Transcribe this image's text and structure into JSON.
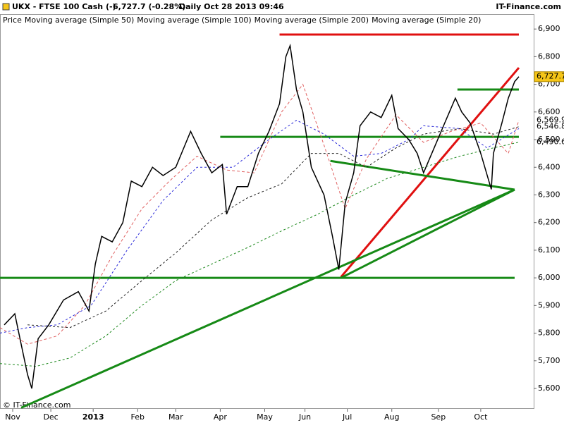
{
  "chart_data": {
    "type": "line",
    "title": "UKX - FTSE 100 Cash (-)",
    "quote": "6,727.7 (-0.28%)",
    "period": "Daily  Oct 28 2013 09:46",
    "source": "IT-Finance.com",
    "footer": "© IT-Finance.com",
    "xlim": [
      0,
      252
    ],
    "ylim": [
      5526,
      6954
    ],
    "xticks": [
      {
        "value": 6,
        "label": "Nov"
      },
      {
        "value": 24,
        "label": "Dec"
      },
      {
        "value": 44,
        "label": "2013"
      },
      {
        "value": 65,
        "label": "Feb"
      },
      {
        "value": 83,
        "label": "Mar"
      },
      {
        "value": 104,
        "label": "Apr"
      },
      {
        "value": 125,
        "label": "May"
      },
      {
        "value": 144,
        "label": "Jun"
      },
      {
        "value": 164,
        "label": "Jul"
      },
      {
        "value": 185,
        "label": "Aug"
      },
      {
        "value": 207,
        "label": "Sep"
      },
      {
        "value": 227,
        "label": "Oct"
      }
    ],
    "yticks": [
      {
        "value": 5600,
        "label": "5,600"
      },
      {
        "value": 5700,
        "label": "5,700"
      },
      {
        "value": 5800,
        "label": "5,800"
      },
      {
        "value": 5900,
        "label": "5,900"
      },
      {
        "value": 6000,
        "label": "6,000"
      },
      {
        "value": 6100,
        "label": "6,100"
      },
      {
        "value": 6200,
        "label": "6,200"
      },
      {
        "value": 6300,
        "label": "6,300"
      },
      {
        "value": 6400,
        "label": "6,400"
      },
      {
        "value": 6500,
        "label": "6,500"
      },
      {
        "value": 6600,
        "label": "6,600"
      },
      {
        "value": 6700,
        "label": "6,700"
      },
      {
        "value": 6800,
        "label": "6,800"
      },
      {
        "value": 6900,
        "label": "6,900"
      }
    ],
    "series": [
      {
        "name": "Price",
        "color": "#000000",
        "width": 1.5,
        "x": [
          2,
          7,
          10,
          13,
          15,
          18,
          23,
          30,
          37,
          42,
          45,
          48,
          53,
          58,
          62,
          67,
          72,
          77,
          83,
          90,
          95,
          100,
          105,
          107,
          112,
          117,
          122,
          127,
          132,
          135,
          137,
          140,
          143,
          147,
          150,
          153,
          157,
          160,
          163,
          167,
          170,
          175,
          180,
          185,
          188,
          193,
          197,
          200,
          205,
          210,
          215,
          218,
          222,
          227,
          232,
          233,
          237,
          240,
          243,
          245
        ],
        "values": [
          5830,
          5870,
          5760,
          5650,
          5600,
          5780,
          5830,
          5920,
          5950,
          5880,
          6050,
          6150,
          6130,
          6200,
          6350,
          6330,
          6400,
          6370,
          6400,
          6530,
          6450,
          6380,
          6410,
          6230,
          6330,
          6330,
          6450,
          6530,
          6630,
          6800,
          6840,
          6680,
          6600,
          6400,
          6350,
          6300,
          6150,
          6030,
          6270,
          6380,
          6550,
          6600,
          6580,
          6660,
          6540,
          6500,
          6450,
          6380,
          6470,
          6560,
          6650,
          6600,
          6560,
          6450,
          6320,
          6450,
          6560,
          6650,
          6710,
          6727.7
        ],
        "end_label": "6,727.7",
        "end_box": "#f5c518"
      },
      {
        "name": "Moving average (Simple 50)",
        "color": "#2b2bd9",
        "dash": "3,3",
        "x": [
          0,
          13,
          27,
          43,
          60,
          77,
          93,
          110,
          127,
          140,
          153,
          167,
          180,
          193,
          200,
          217,
          230,
          245
        ],
        "values": [
          5800,
          5820,
          5830,
          5900,
          6100,
          6280,
          6400,
          6400,
          6500,
          6570,
          6520,
          6440,
          6450,
          6500,
          6550,
          6540,
          6470,
          6540
        ]
      },
      {
        "name": "Moving average (Simple 100)",
        "color": "#222222",
        "dash": "3,3",
        "x": [
          13,
          33,
          50,
          67,
          83,
          100,
          117,
          133,
          147,
          160,
          173,
          187,
          200,
          217,
          233,
          245
        ],
        "values": [
          5830,
          5820,
          5880,
          5990,
          6090,
          6210,
          6290,
          6340,
          6450,
          6450,
          6400,
          6470,
          6520,
          6540,
          6520,
          6546.8
        ],
        "end_label": "6,546.8"
      },
      {
        "name": "Moving average (Simple 200)",
        "color": "#1f8a1f",
        "dash": "3,3",
        "x": [
          0,
          17,
          33,
          50,
          67,
          83,
          100,
          117,
          133,
          150,
          167,
          183,
          200,
          217,
          233,
          245
        ],
        "values": [
          5690,
          5680,
          5710,
          5790,
          5900,
          5990,
          6050,
          6110,
          6170,
          6230,
          6300,
          6360,
          6400,
          6440,
          6470,
          6490.6
        ],
        "end_label": "6,490.6"
      },
      {
        "name": "Moving average (Simple 20)",
        "color": "#e06060",
        "dash": "4,3",
        "x": [
          0,
          13,
          27,
          40,
          53,
          67,
          80,
          93,
          107,
          120,
          133,
          143,
          153,
          163,
          173,
          187,
          200,
          213,
          227,
          240,
          245
        ],
        "values": [
          5820,
          5760,
          5790,
          5900,
          6080,
          6250,
          6350,
          6440,
          6390,
          6380,
          6600,
          6700,
          6480,
          6250,
          6430,
          6590,
          6490,
          6530,
          6560,
          6450,
          6569.9
        ],
        "end_label": "6,569.9"
      }
    ],
    "trend_lines": [
      {
        "color": "#e01010",
        "x": [
          132,
          245
        ],
        "y": [
          6880,
          6880
        ]
      },
      {
        "color": "#e01010",
        "x": [
          161,
          245
        ],
        "y": [
          6003,
          6760
        ]
      },
      {
        "color": "#168a16",
        "x": [
          0,
          243
        ],
        "y": [
          6000,
          6000
        ]
      },
      {
        "color": "#168a16",
        "x": [
          104,
          245
        ],
        "y": [
          6510,
          6510
        ]
      },
      {
        "color": "#168a16",
        "x": [
          216,
          245
        ],
        "y": [
          6681,
          6681
        ]
      },
      {
        "color": "#168a16",
        "x": [
          156,
          243
        ],
        "y": [
          6423,
          6319
        ]
      },
      {
        "color": "#168a16",
        "x": [
          243,
          161
        ],
        "y": [
          6319,
          6000
        ]
      },
      {
        "color": "#168a16",
        "x": [
          10,
          243
        ],
        "y": [
          5530,
          6319
        ]
      }
    ]
  }
}
